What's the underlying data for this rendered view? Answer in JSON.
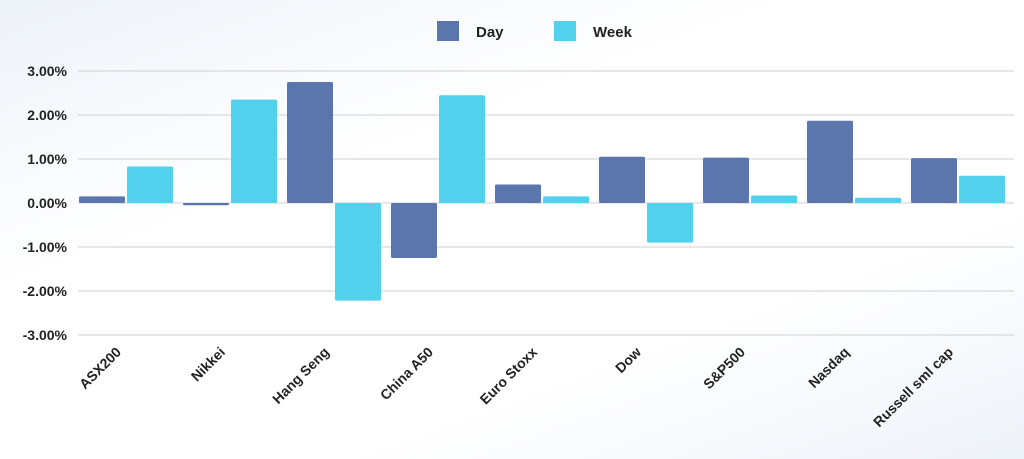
{
  "chart_data": {
    "type": "bar",
    "title": "",
    "xlabel": "",
    "ylabel": "",
    "categories": [
      "ASX200",
      "Nikkei",
      "Hang Seng",
      "China A50",
      "Euro Stoxx",
      "Dow",
      "S&P500",
      "Nasdaq",
      "Russell sml cap"
    ],
    "series": [
      {
        "name": "Day",
        "color": "#5a76ad",
        "values": [
          0.15,
          -0.05,
          2.75,
          -1.25,
          0.42,
          1.05,
          1.03,
          1.87,
          1.02
        ]
      },
      {
        "name": "Week",
        "color": "#51d1eb",
        "values": [
          0.83,
          2.35,
          -2.22,
          2.45,
          0.15,
          -0.9,
          0.17,
          0.12,
          0.62
        ]
      }
    ],
    "ylim": [
      -3,
      3
    ],
    "yticks": [
      3,
      2,
      1,
      0,
      -1,
      -2,
      -3
    ],
    "ytick_labels": [
      "3.00%",
      "2.00%",
      "1.00%",
      "0.00%",
      "-1.00%",
      "-2.00%",
      "-3.00%"
    ],
    "grid": true,
    "legend_position": "top-center"
  }
}
